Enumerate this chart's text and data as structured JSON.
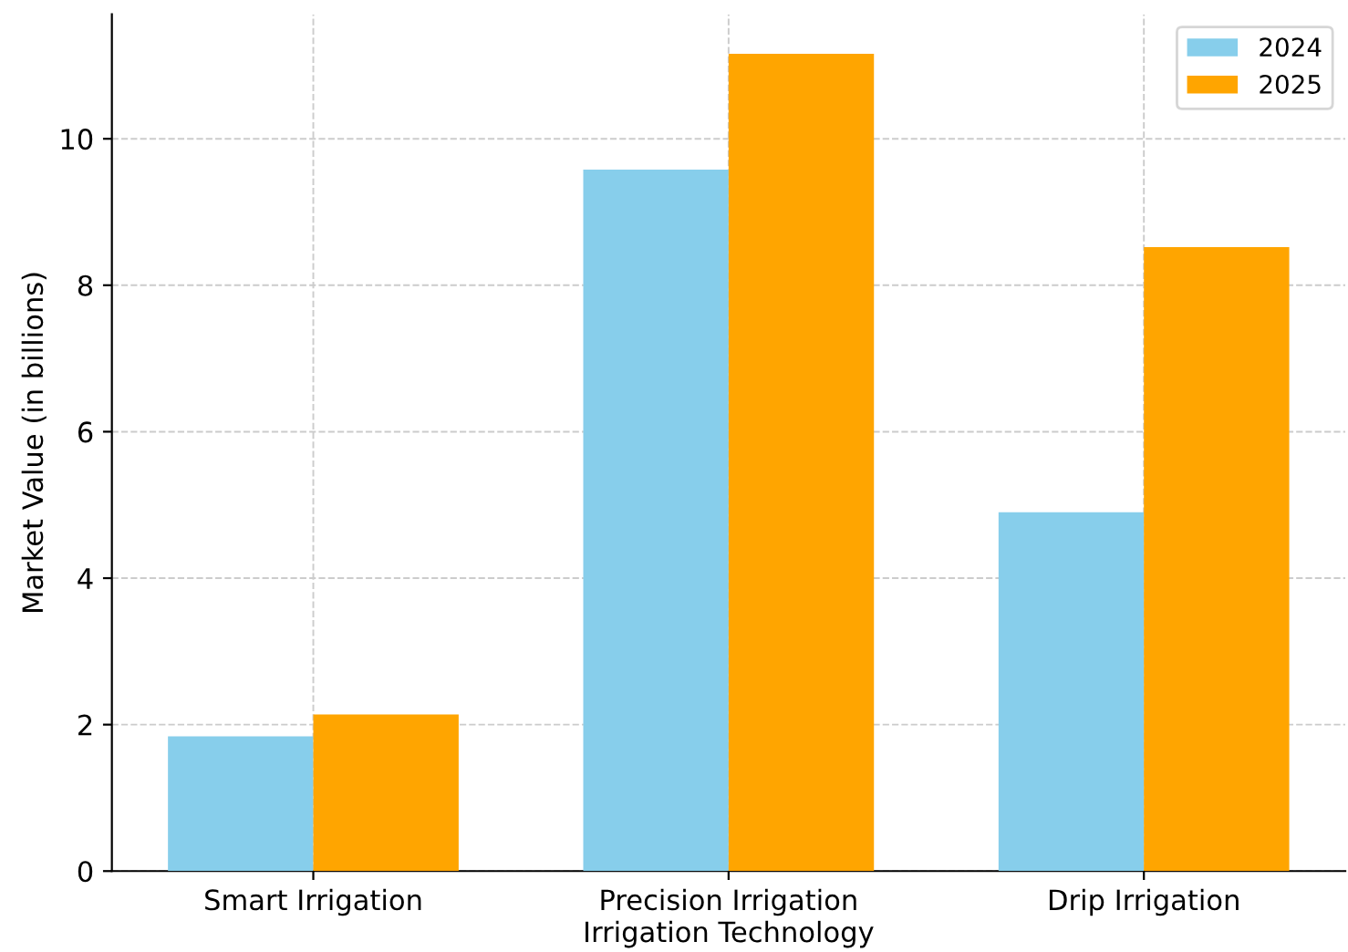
{
  "chart_data": {
    "type": "bar",
    "xlabel": "Irrigation Technology",
    "ylabel": "Market Value (in billions)",
    "categories": [
      "Smart Irrigation",
      "Precision Irrigation",
      "Drip Irrigation"
    ],
    "series": [
      {
        "name": "2024",
        "color": "#87ceeb",
        "values": [
          1.84,
          9.58,
          4.9
        ]
      },
      {
        "name": "2025",
        "color": "#ffa500",
        "values": [
          2.14,
          11.16,
          8.52
        ]
      }
    ],
    "ylim": [
      0,
      11.7
    ],
    "yticks": [
      0,
      2,
      4,
      6,
      8,
      10
    ],
    "grid": true,
    "legend": "top right"
  }
}
